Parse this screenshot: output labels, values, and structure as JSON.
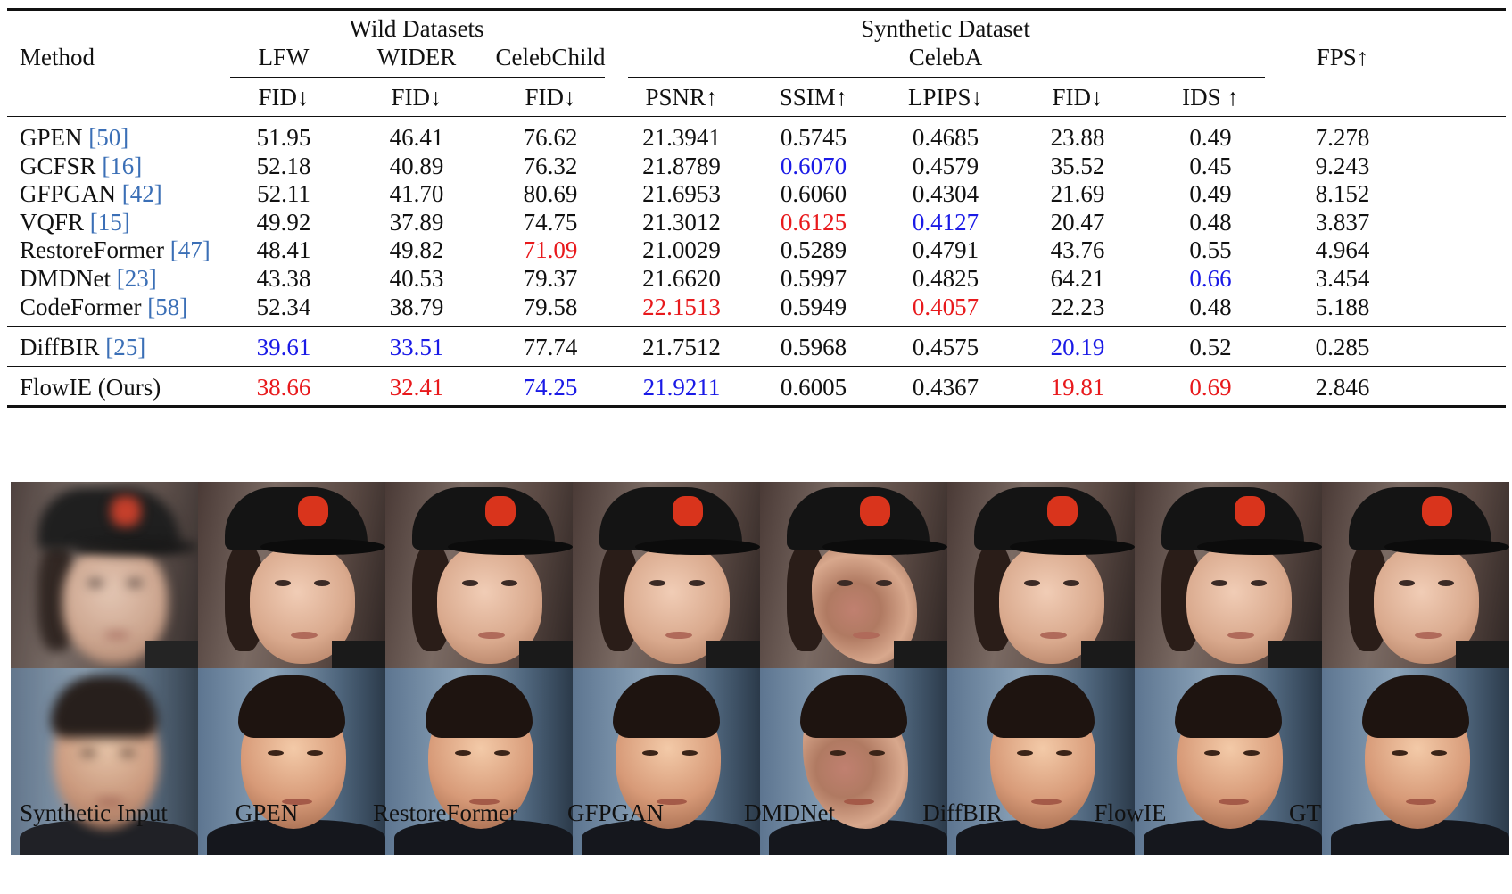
{
  "table": {
    "groups": {
      "wild": "Wild Datasets",
      "synthetic": "Synthetic Dataset",
      "synthetic_sub": "CelebA"
    },
    "headers": {
      "method": "Method",
      "lfw": "LFW",
      "wider": "WIDER",
      "celebchild": "CelebChild",
      "fps": "FPS↑"
    },
    "metrics": [
      "FID↓",
      "FID↓",
      "FID↓",
      "PSNR↑",
      "SSIM↑",
      "LPIPS↓",
      "FID↓",
      "IDS ↑"
    ],
    "rows": [
      {
        "name": "GPEN",
        "cite": "[50]",
        "vals": [
          "51.95",
          "46.41",
          "76.62",
          "21.3941",
          "0.5745",
          "0.4685",
          "23.88",
          "0.49",
          "7.278"
        ],
        "colors": [
          "",
          "",
          "",
          "",
          "",
          "",
          "",
          "",
          ""
        ]
      },
      {
        "name": "GCFSR",
        "cite": "[16]",
        "vals": [
          "52.18",
          "40.89",
          "76.32",
          "21.8789",
          "0.6070",
          "0.4579",
          "35.52",
          "0.45",
          "9.243"
        ],
        "colors": [
          "",
          "",
          "",
          "",
          "blue",
          "",
          "",
          "",
          ""
        ]
      },
      {
        "name": "GFPGAN",
        "cite": "[42]",
        "vals": [
          "52.11",
          "41.70",
          "80.69",
          "21.6953",
          "0.6060",
          "0.4304",
          "21.69",
          "0.49",
          "8.152"
        ],
        "colors": [
          "",
          "",
          "",
          "",
          "",
          "",
          "",
          "",
          ""
        ]
      },
      {
        "name": "VQFR",
        "cite": "[15]",
        "vals": [
          "49.92",
          "37.89",
          "74.75",
          "21.3012",
          "0.6125",
          "0.4127",
          "20.47",
          "0.48",
          "3.837"
        ],
        "colors": [
          "",
          "",
          "",
          "",
          "red",
          "blue",
          "",
          "",
          ""
        ]
      },
      {
        "name": "RestoreFormer",
        "cite": "[47]",
        "vals": [
          "48.41",
          "49.82",
          "71.09",
          "21.0029",
          "0.5289",
          "0.4791",
          "43.76",
          "0.55",
          "4.964"
        ],
        "colors": [
          "",
          "",
          "red",
          "",
          "",
          "",
          "",
          "",
          ""
        ]
      },
      {
        "name": "DMDNet",
        "cite": "[23]",
        "vals": [
          "43.38",
          "40.53",
          "79.37",
          "21.6620",
          "0.5997",
          "0.4825",
          "64.21",
          "0.66",
          "3.454"
        ],
        "colors": [
          "",
          "",
          "",
          "",
          "",
          "",
          "",
          "blue",
          ""
        ]
      },
      {
        "name": "CodeFormer",
        "cite": "[58]",
        "vals": [
          "52.34",
          "38.79",
          "79.58",
          "22.1513",
          "0.5949",
          "0.4057",
          "22.23",
          "0.48",
          "5.188"
        ],
        "colors": [
          "",
          "",
          "",
          "red",
          "",
          "red",
          "",
          "",
          ""
        ]
      },
      {
        "name": "DiffBIR",
        "cite": "[25]",
        "vals": [
          "39.61",
          "33.51",
          "77.74",
          "21.7512",
          "0.5968",
          "0.4575",
          "20.19",
          "0.52",
          "0.285"
        ],
        "colors": [
          "blue",
          "blue",
          "",
          "",
          "",
          "",
          "blue",
          "",
          ""
        ]
      },
      {
        "name": "FlowIE (Ours)",
        "cite": "",
        "vals": [
          "38.66",
          "32.41",
          "74.25",
          "21.9211",
          "0.6005",
          "0.4367",
          "19.81",
          "0.69",
          "2.846"
        ],
        "colors": [
          "red",
          "red",
          "blue",
          "blue",
          "",
          "",
          "red",
          "red",
          ""
        ]
      }
    ],
    "highlight_colors": {
      "red": "#e8191c",
      "blue": "#1a1ae6",
      "cite": "#3b6fb6"
    }
  },
  "figure": {
    "captions": [
      "Synthetic Input",
      "GPEN",
      "RestoreFormer",
      "GFPGAN",
      "DMDNet",
      "DiffBIR",
      "FlowIE",
      "GT"
    ]
  }
}
